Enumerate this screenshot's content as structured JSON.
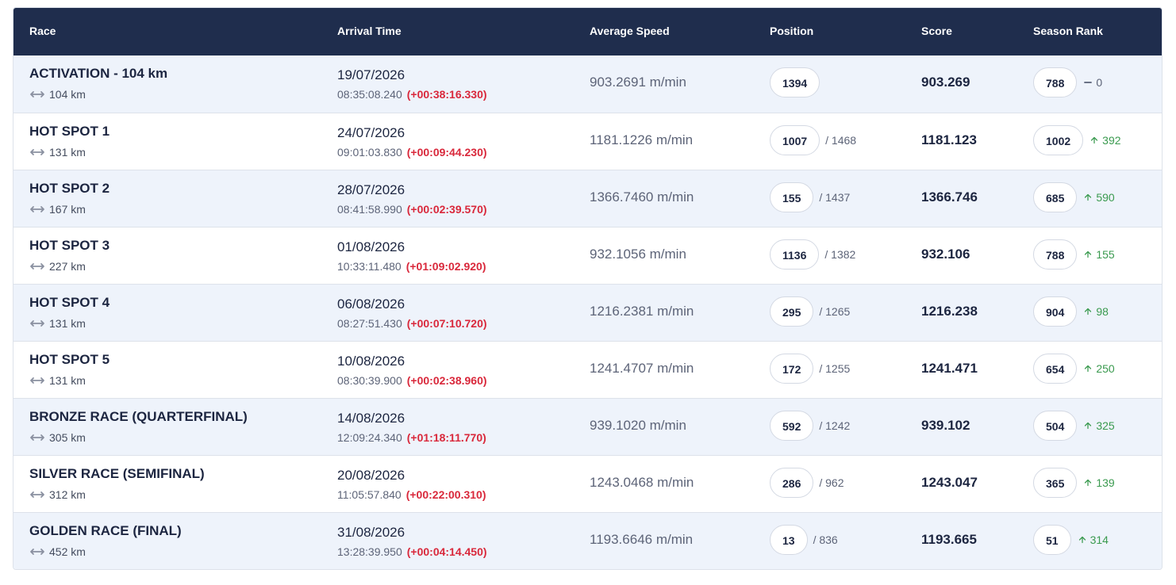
{
  "table": {
    "headers": [
      "Race",
      "Arrival Time",
      "Average Speed",
      "Position",
      "Score",
      "Season Rank"
    ],
    "rows": [
      {
        "race": "ACTIVATION - 104 km",
        "distance": "104 km",
        "date": "19/07/2026",
        "time": "08:35:08.240",
        "delta": "(+00:38:16.330)",
        "speed": "903.2691 m/min",
        "position": 1394,
        "total": null,
        "score": 903.269,
        "rank": 788,
        "change": 0
      },
      {
        "race": "HOT SPOT 1",
        "distance": "131 km",
        "date": "24/07/2026",
        "time": "09:01:03.830",
        "delta": "(+00:09:44.230)",
        "speed": "1181.1226 m/min",
        "position": 1007,
        "total": "/ 1468",
        "score": 1181.123,
        "rank": 1002,
        "change": 392
      },
      {
        "race": "HOT SPOT 2",
        "distance": "167 km",
        "date": "28/07/2026",
        "time": "08:41:58.990",
        "delta": "(+00:02:39.570)",
        "speed": "1366.7460 m/min",
        "position": 155,
        "total": "/ 1437",
        "score": 1366.746,
        "rank": 685,
        "change": 590
      },
      {
        "race": "HOT SPOT 3",
        "distance": "227 km",
        "date": "01/08/2026",
        "time": "10:33:11.480",
        "delta": "(+01:09:02.920)",
        "speed": "932.1056 m/min",
        "position": 1136,
        "total": "/ 1382",
        "score": 932.106,
        "rank": 788,
        "change": 155
      },
      {
        "race": "HOT SPOT 4",
        "distance": "131 km",
        "date": "06/08/2026",
        "time": "08:27:51.430",
        "delta": "(+00:07:10.720)",
        "speed": "1216.2381 m/min",
        "position": 295,
        "total": "/ 1265",
        "score": 1216.238,
        "rank": 904,
        "change": 98
      },
      {
        "race": "HOT SPOT 5",
        "distance": "131 km",
        "date": "10/08/2026",
        "time": "08:30:39.900",
        "delta": "(+00:02:38.960)",
        "speed": "1241.4707 m/min",
        "position": 172,
        "total": "/ 1255",
        "score": 1241.471,
        "rank": 654,
        "change": 250
      },
      {
        "race": "BRONZE RACE (QUARTERFINAL)",
        "distance": "305 km",
        "date": "14/08/2026",
        "time": "12:09:24.340",
        "delta": "(+01:18:11.770)",
        "speed": "939.1020 m/min",
        "position": 592,
        "total": "/ 1242",
        "score": 939.102,
        "rank": 504,
        "change": 325
      },
      {
        "race": "SILVER RACE (SEMIFINAL)",
        "distance": "312 km",
        "date": "20/08/2026",
        "time": "11:05:57.840",
        "delta": "(+00:22:00.310)",
        "speed": "1243.0468 m/min",
        "position": 286,
        "total": "/ 962",
        "score": 1243.047,
        "rank": 365,
        "change": 139
      },
      {
        "race": "GOLDEN RACE (FINAL)",
        "distance": "452 km",
        "date": "31/08/2026",
        "time": "13:28:39.950",
        "delta": "(+00:04:14.450)",
        "speed": "1193.6646 m/min",
        "position": 13,
        "total": "/ 836",
        "score": 1193.665,
        "rank": 51,
        "change": 314
      }
    ]
  }
}
